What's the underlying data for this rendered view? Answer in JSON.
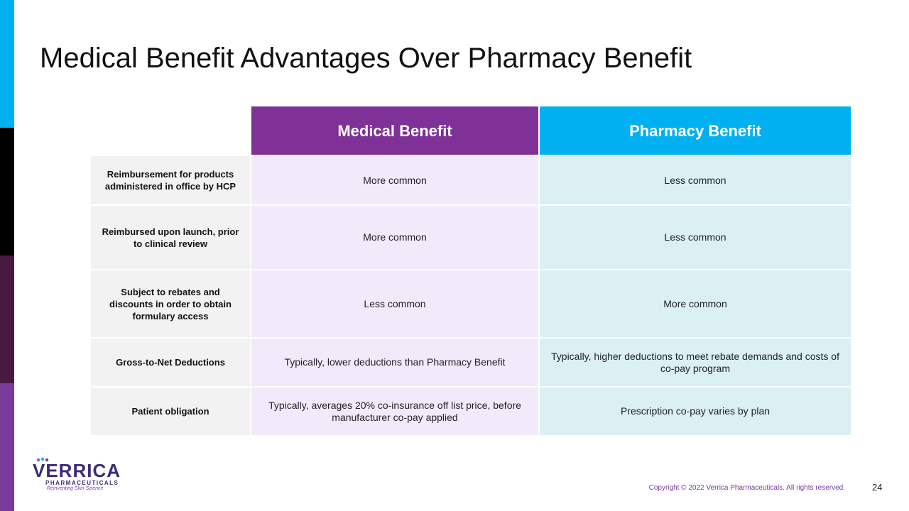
{
  "slide": {
    "title": "Medical Benefit Advantages Over Pharmacy Benefit",
    "page_number": "24",
    "copyright": "Copyright © 2022 Verrica Pharmaceuticals. All rights reserved."
  },
  "logo": {
    "name": "VERRICA",
    "sub": "PHARMACEUTICALS",
    "tagline": "Reinventing Skin Science"
  },
  "colors": {
    "medical_header": "#7f3197",
    "pharmacy_header": "#00b0f0"
  },
  "table": {
    "headers": [
      "Medical Benefit",
      "Pharmacy Benefit"
    ],
    "rows": [
      {
        "label": "Reimbursement for products administered in office by HCP",
        "medical": "More common",
        "pharmacy": "Less common"
      },
      {
        "label": "Reimbursed upon launch, prior to clinical review",
        "medical": "More common",
        "pharmacy": "Less common"
      },
      {
        "label": "Subject to rebates and discounts in order to obtain formulary access",
        "medical": "Less common",
        "pharmacy": "More common"
      },
      {
        "label": "Gross-to-Net Deductions",
        "medical": "Typically, lower deductions than Pharmacy Benefit",
        "pharmacy": "Typically, higher deductions to meet rebate demands and costs of co-pay program"
      },
      {
        "label": "Patient obligation",
        "medical": "Typically, averages 20% co-insurance off list price, before manufacturer co-pay applied",
        "pharmacy": "Prescription co-pay varies by plan"
      }
    ]
  }
}
